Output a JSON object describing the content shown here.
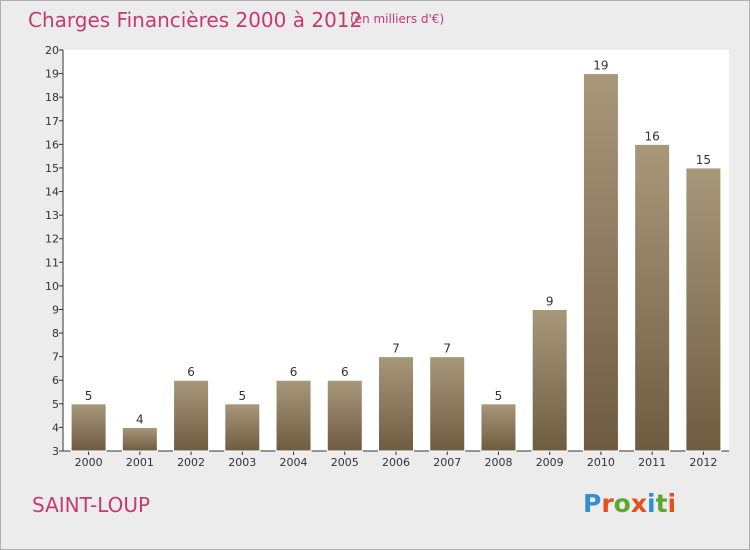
{
  "header": {
    "title": "Charges Financières 2000 à 2012",
    "unit": "(en milliers d'€)"
  },
  "footer": {
    "commune": "SAINT-LOUP",
    "logo": "Proxiti"
  },
  "colors": {
    "title": "#c63a6e",
    "bar_top": "#a8987a",
    "bar_bottom": "#6e5c40",
    "plot_bg": "#ffffff",
    "frame_bg": "#ececec",
    "logo_letters": [
      "#2f8fd0",
      "#e84e1b",
      "#5aa832",
      "#e84e1b",
      "#2f8fd0",
      "#5aa832",
      "#e84e1b"
    ]
  },
  "chart_data": {
    "type": "bar",
    "title": "Charges Financières 2000 à 2012",
    "subtitle": "(en milliers d'€)",
    "categories": [
      "2000",
      "2001",
      "2002",
      "2003",
      "2004",
      "2005",
      "2006",
      "2007",
      "2008",
      "2009",
      "2010",
      "2011",
      "2012"
    ],
    "values": [
      5,
      4,
      6,
      5,
      6,
      6,
      7,
      7,
      5,
      9,
      19,
      16,
      15
    ],
    "ylim": [
      3,
      20
    ],
    "yticks": [
      3,
      4,
      5,
      6,
      7,
      8,
      9,
      10,
      11,
      12,
      13,
      14,
      15,
      16,
      17,
      18,
      19,
      20
    ],
    "grid": false,
    "legend": "none"
  }
}
